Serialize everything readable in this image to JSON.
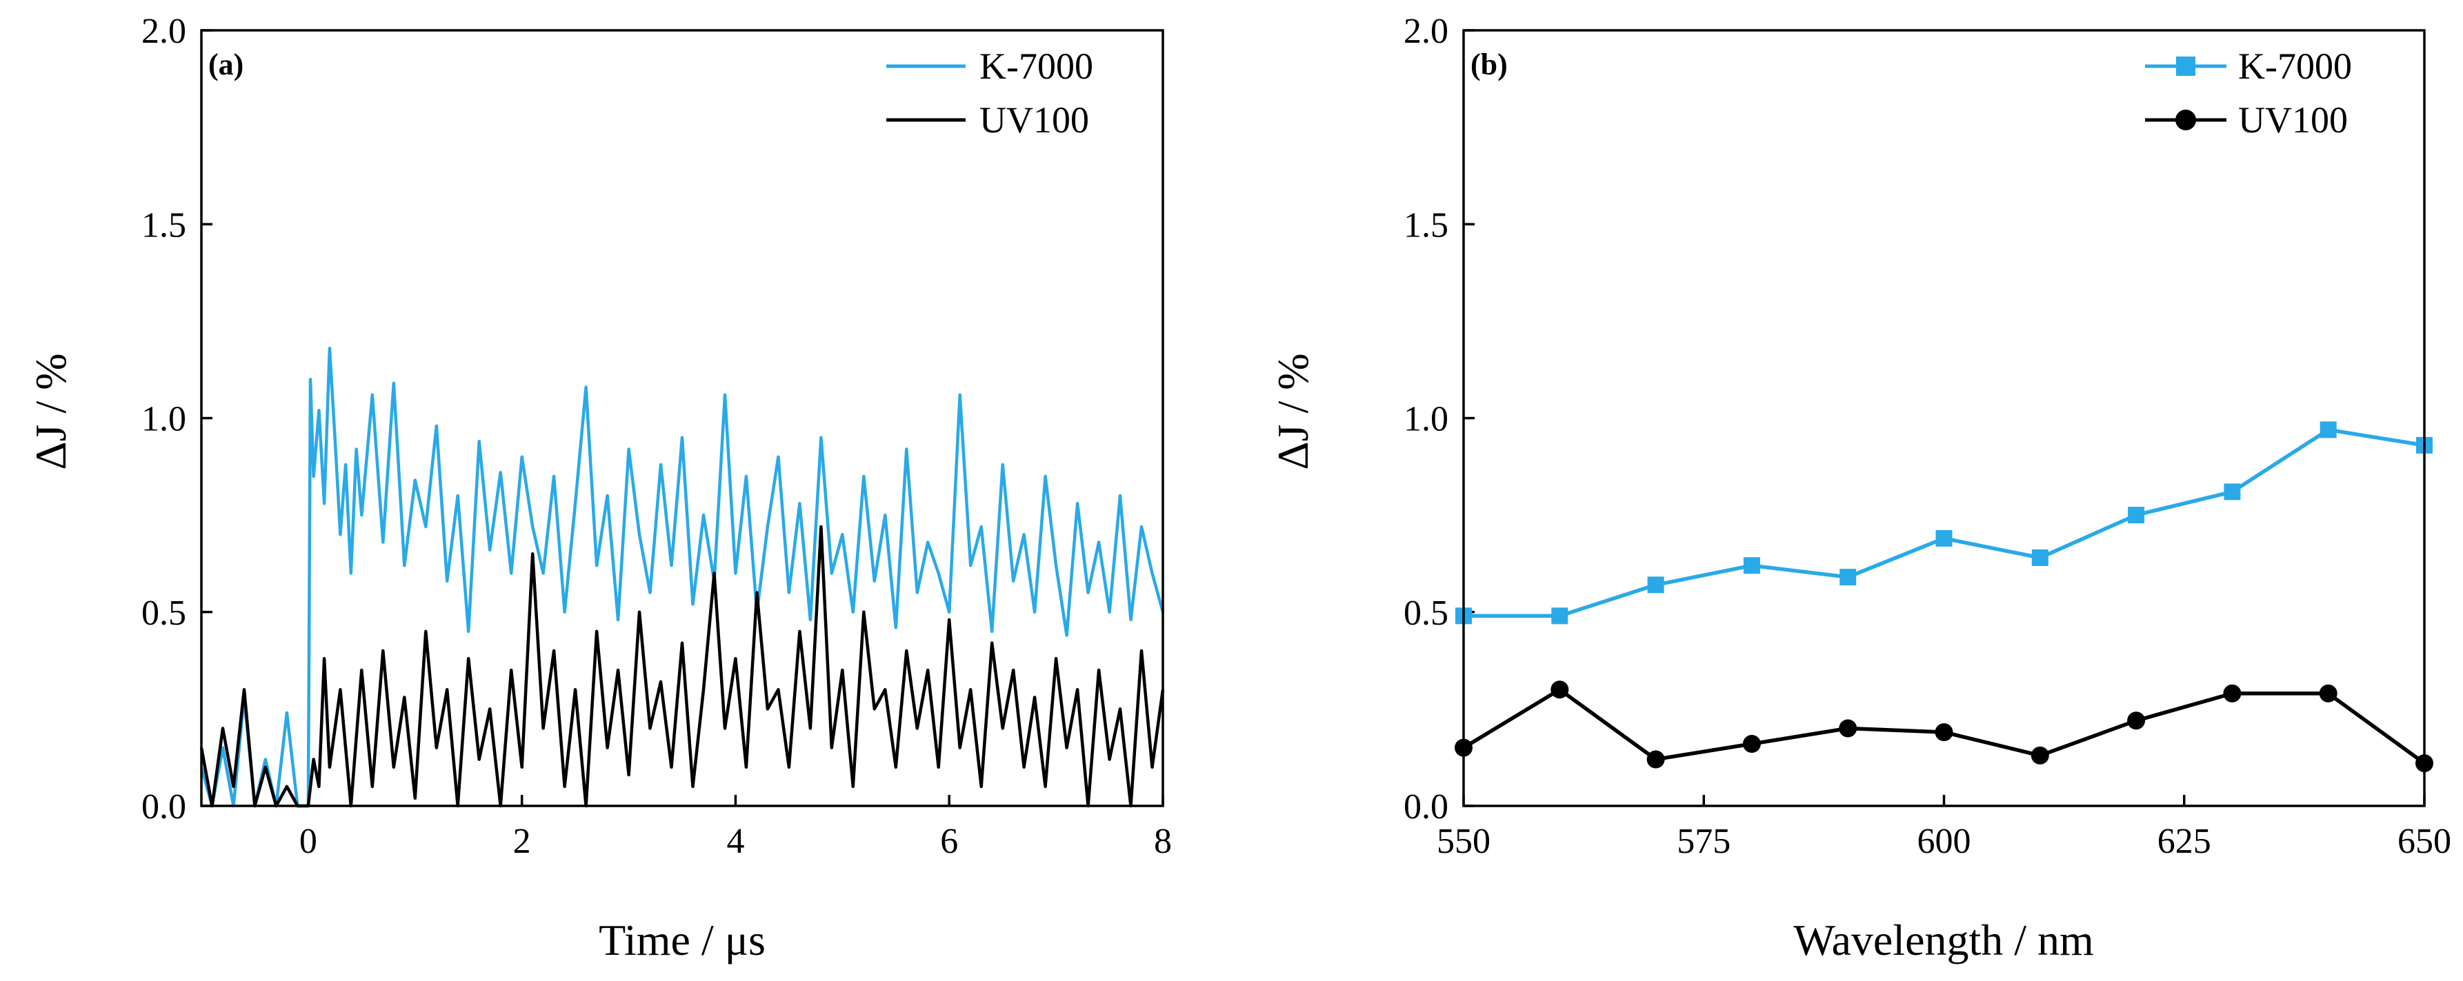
{
  "colors": {
    "k7000": "#29a9e8",
    "uv100": "#000000"
  },
  "chart_data": [
    {
      "type": "line",
      "panel_label": "(a)",
      "xlabel": "Time / μs",
      "ylabel": "ΔJ / %",
      "xlim": [
        -1,
        8
      ],
      "ylim": [
        0.0,
        2.0
      ],
      "xticks": [
        0,
        2,
        4,
        6,
        8
      ],
      "xtick_labels": [
        "0",
        "2",
        "4",
        "6",
        "8"
      ],
      "yticks": [
        0.0,
        0.5,
        1.0,
        1.5,
        2.0
      ],
      "ytick_labels": [
        "0.0",
        "0.5",
        "1.0",
        "1.5",
        "2.0"
      ],
      "legend": [
        "K-7000",
        "UV100"
      ],
      "legend_position": "top-right",
      "series": [
        {
          "name": "K-7000",
          "color": "#29a9e8",
          "x": [
            -1.0,
            -0.9,
            -0.8,
            -0.7,
            -0.6,
            -0.5,
            -0.4,
            -0.3,
            -0.2,
            -0.1,
            0.0,
            0.02,
            0.05,
            0.1,
            0.15,
            0.2,
            0.25,
            0.3,
            0.35,
            0.4,
            0.45,
            0.5,
            0.6,
            0.7,
            0.8,
            0.9,
            1.0,
            1.1,
            1.2,
            1.3,
            1.4,
            1.5,
            1.6,
            1.7,
            1.8,
            1.9,
            2.0,
            2.1,
            2.2,
            2.3,
            2.4,
            2.5,
            2.6,
            2.7,
            2.8,
            2.9,
            3.0,
            3.1,
            3.2,
            3.3,
            3.4,
            3.5,
            3.6,
            3.7,
            3.8,
            3.9,
            4.0,
            4.1,
            4.2,
            4.3,
            4.4,
            4.5,
            4.6,
            4.7,
            4.8,
            4.9,
            5.0,
            5.1,
            5.2,
            5.3,
            5.4,
            5.5,
            5.6,
            5.7,
            5.8,
            5.9,
            6.0,
            6.1,
            6.2,
            6.3,
            6.4,
            6.5,
            6.6,
            6.7,
            6.8,
            6.9,
            7.0,
            7.1,
            7.2,
            7.3,
            7.4,
            7.5,
            7.6,
            7.7,
            7.8,
            7.9,
            8.0
          ],
          "values": [
            0.1,
            0.0,
            0.15,
            0.0,
            0.28,
            0.0,
            0.12,
            0.0,
            0.24,
            0.0,
            0.0,
            1.1,
            0.85,
            1.02,
            0.78,
            1.18,
            0.95,
            0.7,
            0.88,
            0.6,
            0.92,
            0.75,
            1.06,
            0.68,
            1.09,
            0.62,
            0.84,
            0.72,
            0.98,
            0.58,
            0.8,
            0.45,
            0.94,
            0.66,
            0.86,
            0.6,
            0.9,
            0.72,
            0.6,
            0.85,
            0.5,
            0.78,
            1.08,
            0.62,
            0.8,
            0.48,
            0.92,
            0.7,
            0.55,
            0.88,
            0.62,
            0.95,
            0.52,
            0.75,
            0.58,
            1.06,
            0.6,
            0.85,
            0.5,
            0.72,
            0.9,
            0.55,
            0.78,
            0.48,
            0.95,
            0.6,
            0.7,
            0.5,
            0.85,
            0.58,
            0.75,
            0.46,
            0.92,
            0.55,
            0.68,
            0.6,
            0.5,
            1.06,
            0.62,
            0.72,
            0.45,
            0.88,
            0.58,
            0.7,
            0.5,
            0.85,
            0.62,
            0.44,
            0.78,
            0.55,
            0.68,
            0.5,
            0.8,
            0.48,
            0.72,
            0.6,
            0.5
          ]
        },
        {
          "name": "UV100",
          "color": "#000000",
          "x": [
            -1.0,
            -0.9,
            -0.8,
            -0.7,
            -0.6,
            -0.5,
            -0.4,
            -0.3,
            -0.2,
            -0.1,
            0.0,
            0.05,
            0.1,
            0.15,
            0.2,
            0.3,
            0.4,
            0.5,
            0.6,
            0.7,
            0.8,
            0.9,
            1.0,
            1.1,
            1.2,
            1.3,
            1.4,
            1.5,
            1.6,
            1.7,
            1.8,
            1.9,
            2.0,
            2.1,
            2.2,
            2.3,
            2.4,
            2.5,
            2.6,
            2.7,
            2.8,
            2.9,
            3.0,
            3.1,
            3.2,
            3.3,
            3.4,
            3.5,
            3.6,
            3.7,
            3.8,
            3.9,
            4.0,
            4.1,
            4.2,
            4.3,
            4.4,
            4.5,
            4.6,
            4.7,
            4.8,
            4.9,
            5.0,
            5.1,
            5.2,
            5.3,
            5.4,
            5.5,
            5.6,
            5.7,
            5.8,
            5.9,
            6.0,
            6.1,
            6.2,
            6.3,
            6.4,
            6.5,
            6.6,
            6.7,
            6.8,
            6.9,
            7.0,
            7.1,
            7.2,
            7.3,
            7.4,
            7.5,
            7.6,
            7.7,
            7.8,
            7.9,
            8.0
          ],
          "values": [
            0.15,
            0.0,
            0.2,
            0.05,
            0.3,
            0.0,
            0.1,
            0.0,
            0.05,
            0.0,
            0.0,
            0.12,
            0.05,
            0.38,
            0.1,
            0.3,
            0.0,
            0.35,
            0.05,
            0.4,
            0.1,
            0.28,
            0.02,
            0.45,
            0.15,
            0.3,
            0.0,
            0.38,
            0.12,
            0.25,
            0.0,
            0.35,
            0.1,
            0.65,
            0.2,
            0.4,
            0.05,
            0.3,
            0.0,
            0.45,
            0.15,
            0.35,
            0.08,
            0.5,
            0.2,
            0.32,
            0.1,
            0.42,
            0.05,
            0.3,
            0.6,
            0.2,
            0.38,
            0.1,
            0.55,
            0.25,
            0.3,
            0.1,
            0.45,
            0.2,
            0.72,
            0.15,
            0.35,
            0.05,
            0.5,
            0.25,
            0.3,
            0.1,
            0.4,
            0.2,
            0.35,
            0.1,
            0.48,
            0.15,
            0.3,
            0.05,
            0.42,
            0.2,
            0.35,
            0.1,
            0.28,
            0.05,
            0.38,
            0.15,
            0.3,
            0.0,
            0.35,
            0.12,
            0.25,
            0.0,
            0.4,
            0.1,
            0.3
          ]
        }
      ]
    },
    {
      "type": "line",
      "panel_label": "(b)",
      "xlabel": "Wavelength / nm",
      "ylabel": "ΔJ / %",
      "xlim": [
        550,
        650
      ],
      "ylim": [
        0.0,
        2.0
      ],
      "xticks": [
        550,
        575,
        600,
        625,
        650
      ],
      "xtick_labels": [
        "550",
        "575",
        "600",
        "625",
        "650"
      ],
      "yticks": [
        0.0,
        0.5,
        1.0,
        1.5,
        2.0
      ],
      "ytick_labels": [
        "0.0",
        "0.5",
        "1.0",
        "1.5",
        "2.0"
      ],
      "legend": [
        "K-7000",
        "UV100"
      ],
      "legend_position": "top-right",
      "series": [
        {
          "name": "K-7000",
          "color": "#29a9e8",
          "marker": "square",
          "x": [
            550,
            560,
            570,
            580,
            590,
            600,
            610,
            620,
            630,
            640,
            650
          ],
          "values": [
            0.49,
            0.49,
            0.57,
            0.62,
            0.59,
            0.69,
            0.64,
            0.75,
            0.81,
            0.97,
            0.93
          ]
        },
        {
          "name": "UV100",
          "color": "#000000",
          "marker": "circle",
          "x": [
            550,
            560,
            570,
            580,
            590,
            600,
            610,
            620,
            630,
            640,
            650
          ],
          "values": [
            0.15,
            0.3,
            0.12,
            0.16,
            0.2,
            0.19,
            0.13,
            0.22,
            0.29,
            0.29,
            0.11
          ]
        }
      ]
    }
  ]
}
